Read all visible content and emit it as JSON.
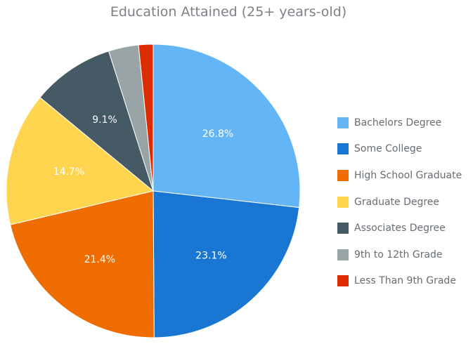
{
  "chart_data": {
    "type": "pie",
    "title": "Education Attained (25+ years-old)",
    "categories": [
      "Bachelors Degree",
      "Some College",
      "High School Graduate",
      "Graduate Degree",
      "Associates Degree",
      "9th to 12th Grade",
      "Less Than 9th Grade"
    ],
    "values": [
      26.8,
      23.1,
      21.4,
      14.7,
      9.1,
      3.3,
      1.6
    ],
    "labels": [
      "26.8%",
      "23.1%",
      "21.4%",
      "14.7%",
      "9.1%",
      "",
      ""
    ],
    "colors": [
      "#64b5f6",
      "#1976d2",
      "#ef6c00",
      "#ffd54f",
      "#455a64",
      "#99a4a6",
      "#dd2c00"
    ],
    "legend_position": "right"
  }
}
